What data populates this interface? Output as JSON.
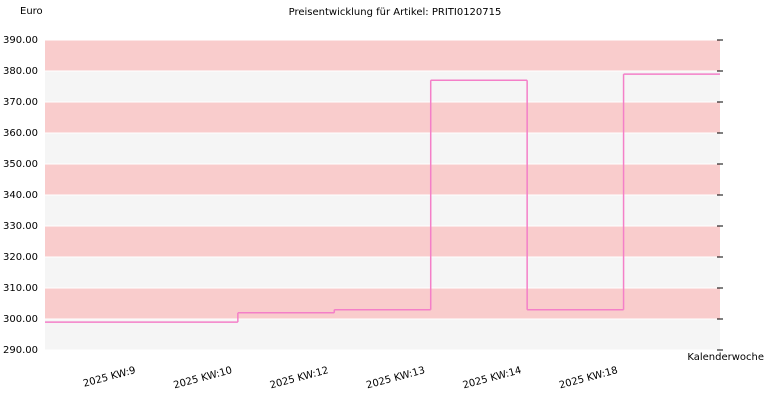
{
  "chart_data": {
    "type": "step",
    "title": "Preisentwicklung für Artikel: PRITI0120715",
    "y_label": "Euro",
    "x_label": "Kalenderwoche",
    "categories": [
      "2025 KW:9",
      "2025 KW:10",
      "2025 KW:12",
      "2025 KW:13",
      "2025 KW:14",
      "2025 KW:18"
    ],
    "series": [
      {
        "name": "PRITI0120715",
        "color": "#f47fc8",
        "values": [
          299,
          302,
          303,
          377,
          303,
          379
        ]
      }
    ],
    "ylim": [
      290,
      390
    ],
    "yticks": [
      {
        "value": 290,
        "label": "290.00"
      },
      {
        "value": 300,
        "label": "300.00"
      },
      {
        "value": 310,
        "label": "310.00"
      },
      {
        "value": 320,
        "label": "320.00"
      },
      {
        "value": 330,
        "label": "330.00"
      },
      {
        "value": 340,
        "label": "340.00"
      },
      {
        "value": 350,
        "label": "350.00"
      },
      {
        "value": 360,
        "label": "360.00"
      },
      {
        "value": 370,
        "label": "370.00"
      },
      {
        "value": 380,
        "label": "380.00"
      },
      {
        "value": 390,
        "label": "390.00"
      }
    ],
    "band_colors": [
      "#f5f5f5",
      "#f9cccc"
    ]
  }
}
